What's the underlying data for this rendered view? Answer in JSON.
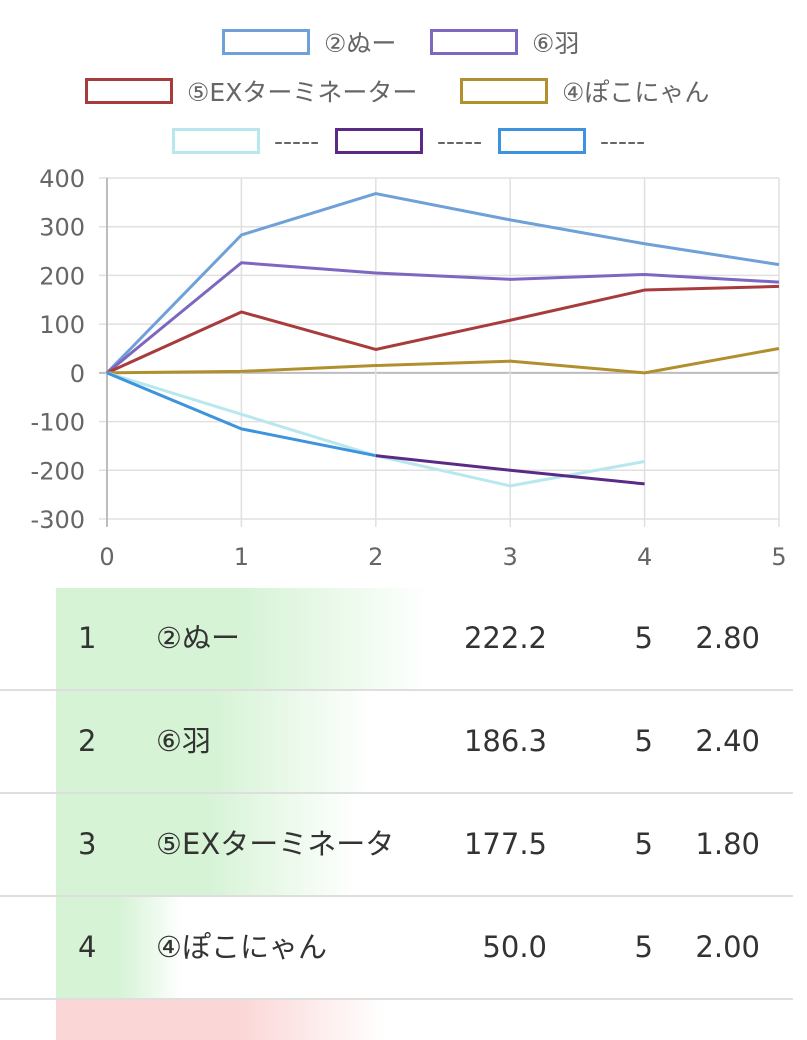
{
  "legend": [
    {
      "label": "②ぬー",
      "color": "#6fa0d8"
    },
    {
      "label": "⑥羽",
      "color": "#7d67c0"
    },
    {
      "label": "⑤EXターミネーター",
      "color": "#a83c3c"
    },
    {
      "label": "④ぽこにゃん",
      "color": "#b0902e"
    },
    {
      "label": "-----",
      "color": "#b8e8ee"
    },
    {
      "label": "-----",
      "color": "#5b2a86"
    },
    {
      "label": "-----",
      "color": "#3d94dd"
    }
  ],
  "chart_data": {
    "type": "line",
    "x": [
      0,
      1,
      2,
      3,
      4,
      5
    ],
    "ylim": [
      -300,
      400
    ],
    "xlim": [
      0,
      5
    ],
    "yticks": [
      "400",
      "300",
      "200",
      "100",
      "0",
      "-100",
      "-200",
      "-300"
    ],
    "xticks": [
      "0",
      "1",
      "2",
      "3",
      "4",
      "5"
    ],
    "grid": true,
    "legend_position": "top",
    "series": [
      {
        "name": "②ぬー",
        "color": "#6fa0d8",
        "x": [
          0,
          1,
          2,
          3,
          4,
          5
        ],
        "values": [
          0,
          283,
          368,
          314,
          265,
          222.2
        ]
      },
      {
        "name": "⑥羽",
        "color": "#7d67c0",
        "x": [
          0,
          1,
          2,
          3,
          4,
          5
        ],
        "values": [
          0,
          226,
          205,
          192,
          202,
          186.3
        ]
      },
      {
        "name": "⑤EXターミネーター",
        "color": "#a83c3c",
        "x": [
          0,
          1,
          2,
          3,
          4,
          5
        ],
        "values": [
          0,
          125,
          48,
          108,
          170,
          177.5
        ]
      },
      {
        "name": "④ぽこにゃん",
        "color": "#b0902e",
        "x": [
          0,
          1,
          2,
          3,
          4,
          5
        ],
        "values": [
          0,
          3,
          15,
          24,
          0,
          50.0
        ]
      },
      {
        "name": "-----",
        "color": "#b8e8ee",
        "x": [
          0,
          1,
          2,
          3,
          4
        ],
        "values": [
          0,
          -85,
          -170,
          -232,
          -182
        ]
      },
      {
        "name": "-----",
        "color": "#5b2a86",
        "x": [
          2,
          3,
          4
        ],
        "values": [
          -170,
          -200,
          -228
        ]
      },
      {
        "name": "-----",
        "color": "#3d94dd",
        "x": [
          0,
          1,
          2
        ],
        "values": [
          0,
          -115,
          -170
        ]
      }
    ]
  },
  "ranking": [
    {
      "rank": "1",
      "name": "②ぬー",
      "score": "222.2",
      "games": "5",
      "avg": "2.80",
      "bar_fraction": 0.47
    },
    {
      "rank": "2",
      "name": "⑥羽",
      "score": "186.3",
      "games": "5",
      "avg": "2.40",
      "bar_fraction": 0.4
    },
    {
      "rank": "3",
      "name": "⑤EXターミネータ",
      "score": "177.5",
      "games": "5",
      "avg": "1.80",
      "bar_fraction": 0.38
    },
    {
      "rank": "4",
      "name": "④ぽこにゃん",
      "score": "50.0",
      "games": "5",
      "avg": "2.00",
      "bar_fraction": 0.16
    }
  ],
  "colors": {
    "positive_bar": "#d6f3d6",
    "negative_bar": "#fbd6d6",
    "grid": "#e0e0e0",
    "axis_text": "#666666"
  }
}
